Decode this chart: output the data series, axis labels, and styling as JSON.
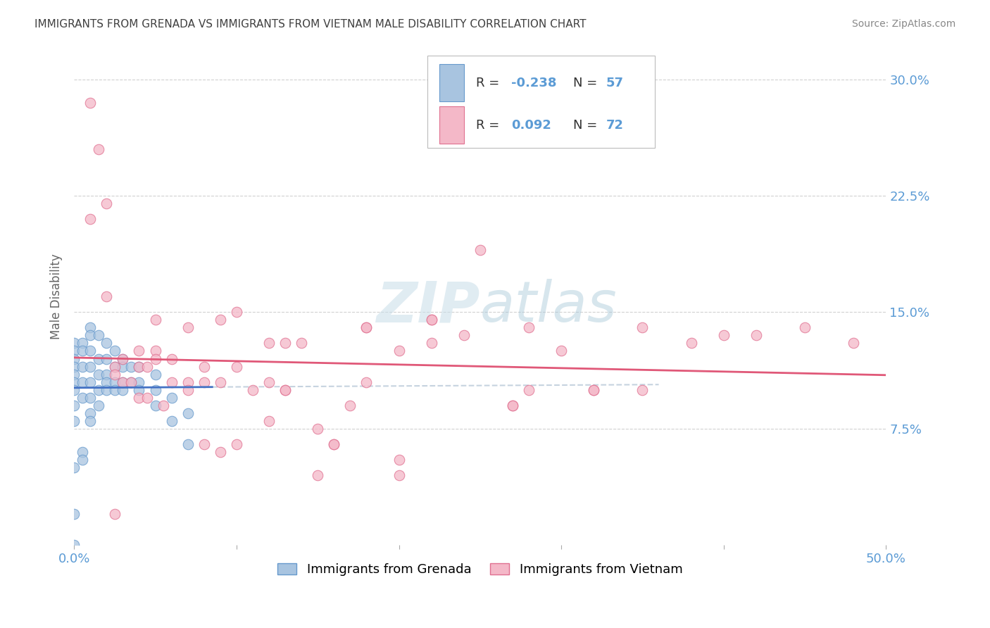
{
  "title": "IMMIGRANTS FROM GRENADA VS IMMIGRANTS FROM VIETNAM MALE DISABILITY CORRELATION CHART",
  "source": "Source: ZipAtlas.com",
  "ylabel": "Male Disability",
  "ytick_labels": [
    "7.5%",
    "15.0%",
    "22.5%",
    "30.0%"
  ],
  "ytick_values": [
    0.075,
    0.15,
    0.225,
    0.3
  ],
  "xlim": [
    0.0,
    0.5
  ],
  "ylim": [
    0.0,
    0.32
  ],
  "color_grenada_fill": "#a8c4e0",
  "color_grenada_edge": "#6699cc",
  "color_vietnam_fill": "#f4b8c8",
  "color_vietnam_edge": "#e07090",
  "color_grenada_line": "#4472c4",
  "color_vietnam_line": "#e05878",
  "color_axis_labels": "#5b9bd5",
  "color_title": "#404040",
  "color_source": "#888888",
  "background_color": "#ffffff",
  "legend_r1_label": "R = ",
  "legend_r1_val": "-0.238",
  "legend_n1_label": "N = ",
  "legend_n1_val": "57",
  "legend_r2_label": "R = ",
  "legend_r2_val": "0.092",
  "legend_n2_label": "N = ",
  "legend_n2_val": "72",
  "grenada_x": [
    0.0,
    0.0,
    0.0,
    0.0,
    0.0,
    0.0,
    0.0,
    0.0,
    0.0,
    0.0,
    0.0,
    0.005,
    0.005,
    0.005,
    0.005,
    0.005,
    0.005,
    0.01,
    0.01,
    0.01,
    0.01,
    0.01,
    0.01,
    0.01,
    0.015,
    0.015,
    0.015,
    0.015,
    0.02,
    0.02,
    0.02,
    0.02,
    0.025,
    0.025,
    0.025,
    0.03,
    0.03,
    0.03,
    0.035,
    0.035,
    0.04,
    0.04,
    0.05,
    0.05,
    0.06,
    0.07,
    0.0,
    0.005,
    0.01,
    0.015,
    0.02,
    0.025,
    0.03,
    0.04,
    0.05,
    0.06,
    0.07
  ],
  "grenada_y": [
    0.13,
    0.125,
    0.12,
    0.115,
    0.11,
    0.105,
    0.1,
    0.09,
    0.08,
    0.05,
    0.02,
    0.13,
    0.125,
    0.115,
    0.105,
    0.095,
    0.06,
    0.14,
    0.135,
    0.125,
    0.115,
    0.105,
    0.095,
    0.085,
    0.135,
    0.12,
    0.11,
    0.1,
    0.13,
    0.12,
    0.11,
    0.105,
    0.125,
    0.115,
    0.105,
    0.12,
    0.115,
    0.105,
    0.115,
    0.105,
    0.115,
    0.105,
    0.11,
    0.1,
    0.095,
    0.085,
    0.0,
    0.055,
    0.08,
    0.09,
    0.1,
    0.1,
    0.1,
    0.1,
    0.09,
    0.08,
    0.065
  ],
  "vietnam_x": [
    0.01,
    0.01,
    0.015,
    0.02,
    0.02,
    0.025,
    0.025,
    0.03,
    0.03,
    0.035,
    0.04,
    0.04,
    0.04,
    0.045,
    0.05,
    0.05,
    0.05,
    0.06,
    0.06,
    0.07,
    0.07,
    0.08,
    0.08,
    0.09,
    0.09,
    0.1,
    0.1,
    0.11,
    0.12,
    0.12,
    0.13,
    0.13,
    0.14,
    0.15,
    0.16,
    0.17,
    0.18,
    0.18,
    0.2,
    0.2,
    0.22,
    0.22,
    0.24,
    0.25,
    0.27,
    0.28,
    0.3,
    0.32,
    0.35,
    0.38,
    0.4,
    0.42,
    0.45,
    0.48,
    0.025,
    0.08,
    0.1,
    0.12,
    0.13,
    0.18,
    0.22,
    0.27,
    0.32,
    0.35,
    0.2,
    0.15,
    0.09,
    0.045,
    0.055,
    0.07,
    0.16,
    0.28
  ],
  "vietnam_y": [
    0.285,
    0.21,
    0.255,
    0.16,
    0.22,
    0.115,
    0.11,
    0.105,
    0.12,
    0.105,
    0.095,
    0.115,
    0.125,
    0.115,
    0.125,
    0.145,
    0.12,
    0.105,
    0.12,
    0.105,
    0.14,
    0.105,
    0.115,
    0.105,
    0.145,
    0.115,
    0.15,
    0.1,
    0.105,
    0.13,
    0.13,
    0.1,
    0.13,
    0.075,
    0.065,
    0.09,
    0.105,
    0.14,
    0.125,
    0.055,
    0.13,
    0.145,
    0.135,
    0.19,
    0.09,
    0.14,
    0.125,
    0.1,
    0.14,
    0.13,
    0.135,
    0.135,
    0.14,
    0.13,
    0.02,
    0.065,
    0.065,
    0.08,
    0.1,
    0.14,
    0.145,
    0.09,
    0.1,
    0.1,
    0.045,
    0.045,
    0.06,
    0.095,
    0.09,
    0.1,
    0.065,
    0.1
  ]
}
